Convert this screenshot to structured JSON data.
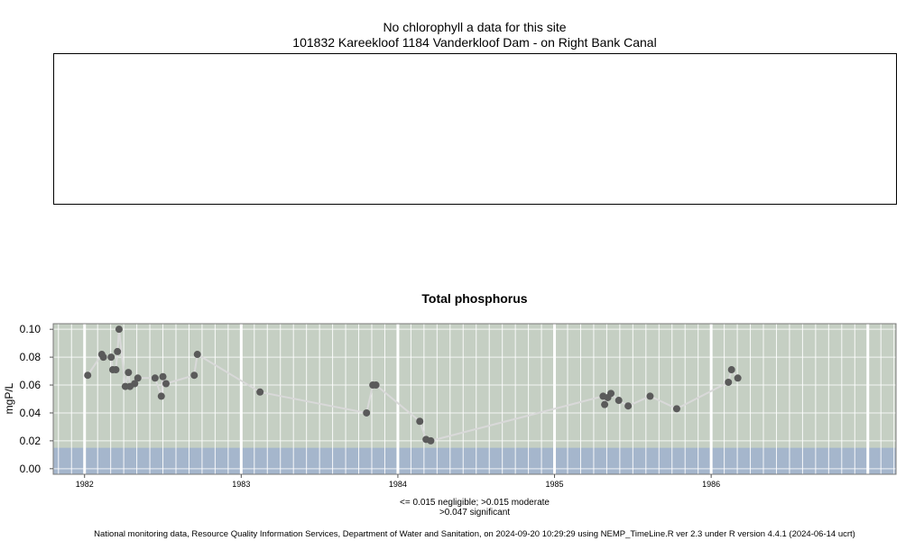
{
  "header": {
    "title_line1": "No chlorophyll a data for this site",
    "title_line2": "101832 Kareekloof 1184 Vanderkloof Dam - on Right Bank Canal"
  },
  "colors": {
    "plot_background": "#c5cfc3",
    "negligible_band": "#a5b6cc",
    "gridline": "#ffffff",
    "series_line": "#d9d9d9",
    "point": "#5a5a5a"
  },
  "chart_data": {
    "type": "line",
    "title": "Total phosphorus",
    "xlabel": "",
    "ylabel": "mgP/L",
    "xlim": [
      1981.8,
      1987.18
    ],
    "ylim": [
      -0.004,
      0.104
    ],
    "x_ticks": [
      1982,
      1983,
      1984,
      1985,
      1986
    ],
    "y_ticks": [
      0.0,
      0.02,
      0.04,
      0.06,
      0.08,
      0.1
    ],
    "y_tick_labels": [
      "0.00",
      "0.02",
      "0.04",
      "0.06",
      "0.08",
      "0.10"
    ],
    "major_gridlines": [
      1982,
      1983,
      1984,
      1985,
      1986,
      1987
    ],
    "threshold_band": {
      "from": 0.0,
      "to": 0.015
    },
    "grid": true,
    "series": [
      {
        "x": [
          1982.02,
          1982.11,
          1982.12,
          1982.17,
          1982.18,
          1982.2,
          1982.21,
          1982.22,
          1982.26,
          1982.28,
          1982.29,
          1982.32,
          1982.34,
          1982.45,
          1982.49,
          1982.5,
          1982.52,
          1982.7,
          1982.72,
          1983.12,
          1983.8,
          1983.84,
          1983.86,
          1984.14,
          1984.18,
          1984.21,
          1985.31,
          1985.32,
          1985.34,
          1985.36,
          1985.41,
          1985.47,
          1985.61,
          1985.78,
          1986.11,
          1986.13,
          1986.17
        ],
        "y": [
          0.067,
          0.082,
          0.08,
          0.08,
          0.071,
          0.071,
          0.084,
          0.1,
          0.059,
          0.069,
          0.059,
          0.061,
          0.065,
          0.065,
          0.052,
          0.066,
          0.061,
          0.067,
          0.082,
          0.055,
          0.04,
          0.06,
          0.06,
          0.034,
          0.021,
          0.02,
          0.052,
          0.046,
          0.051,
          0.054,
          0.049,
          0.045,
          0.052,
          0.043,
          0.062,
          0.071,
          0.065
        ]
      }
    ]
  },
  "notes": {
    "line1": "<= 0.015 negligible; >0.015 moderate",
    "line2": ">0.047 significant"
  },
  "footer": {
    "text": "National monitoring data, Resource Quality Information Services, Department of Water and Sanitation, on 2024-09-20 10:29:29 using NEMP_TimeLine.R ver 2.3 under R version 4.4.1 (2024-06-14 ucrt)"
  }
}
